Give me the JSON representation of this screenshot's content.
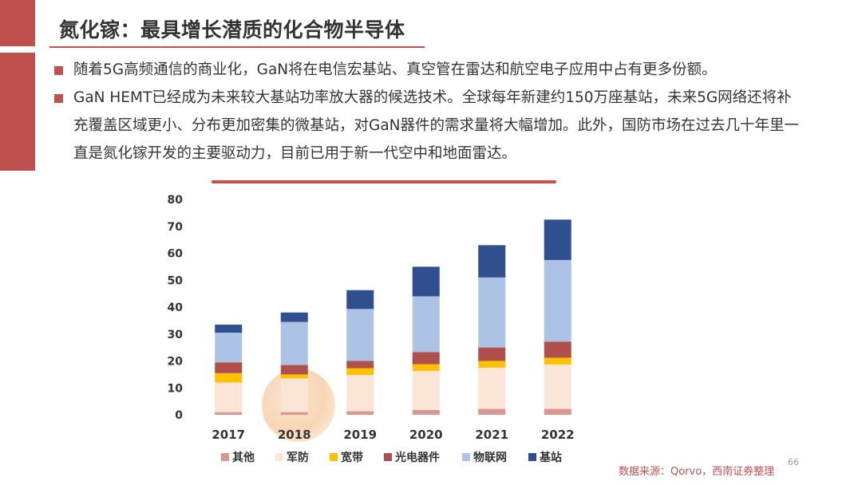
{
  "title": "氮化镓：最具增长潜质的化合物半导体",
  "bullets": [
    "随着5G高频通信的商业化，GaN将在电信宏基站、真空管在雷达和航空电子应用中占有更多份额。",
    "GaN HEMT已经成为未来较大基站功率放大器的候选技术。全球每年新建约150万座基站，未来5G网络还将补充覆盖区域更小、分布更加密集的微基站，对GaN器件的需求量将大幅增加。此外，国防市场在过去几十年里一直是氮化镓开发的主要驱动力，目前已用于新一代空中和地面雷达。"
  ],
  "source": "数据来源：Qorvo，西南证券整理",
  "page_number": "66",
  "chart_data": {
    "type": "bar",
    "stacked": true,
    "categories": [
      "2017",
      "2018",
      "2019",
      "2020",
      "2021",
      "2022"
    ],
    "ylim": [
      0,
      80
    ],
    "yticks": [
      0,
      10,
      20,
      30,
      40,
      50,
      60,
      70,
      80
    ],
    "grid": false,
    "legend_position": "bottom",
    "series": [
      {
        "name": "其他",
        "color": "#d99694",
        "values": [
          1,
          1,
          1.3,
          1.8,
          2.2,
          2.2
        ]
      },
      {
        "name": "军防",
        "color": "#fbe5d6",
        "values": [
          11,
          12.5,
          13.5,
          14.5,
          15.3,
          16.5
        ]
      },
      {
        "name": "宽带",
        "color": "#ffc000",
        "values": [
          3.5,
          1.5,
          2.5,
          2.5,
          2.5,
          2.5
        ]
      },
      {
        "name": "光电器件",
        "color": "#b0504d",
        "values": [
          4,
          3.5,
          2.7,
          4.5,
          5,
          6
        ]
      },
      {
        "name": "物联网",
        "color": "#adc3e6",
        "values": [
          11,
          16,
          19.3,
          20.7,
          26,
          30.3
        ]
      },
      {
        "name": "基站",
        "color": "#2f4f8f",
        "values": [
          3,
          3.5,
          7,
          11,
          12,
          15
        ]
      }
    ]
  }
}
